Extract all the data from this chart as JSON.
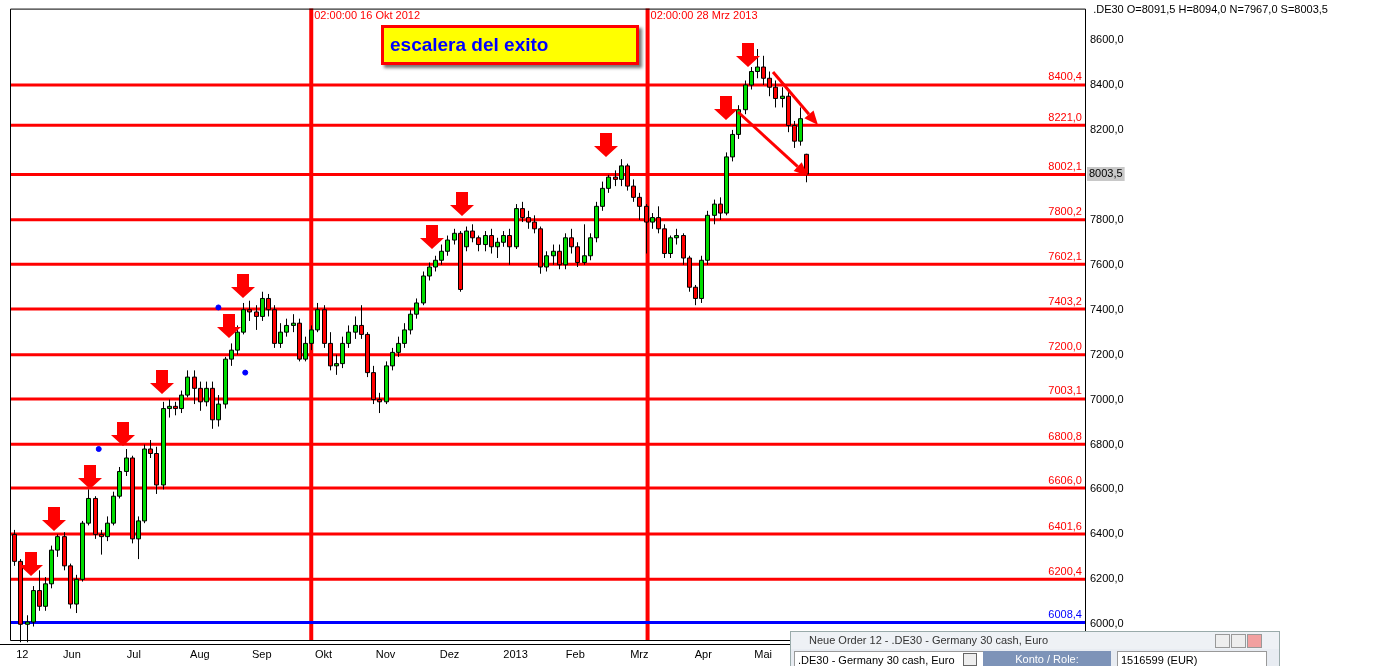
{
  "chart_data": {
    "type": "candlestick",
    "title": "escalera del exito",
    "subtitle": ".DE30 O=8091,5 H=8094,0 N=7967,0 S=8003,5",
    "x": [
      "2012-05-25",
      "2012-05-28",
      "2012-05-31",
      "2012-06-03",
      "2012-06-06",
      "2012-06-09",
      "2012-06-12",
      "2012-06-15",
      "2012-06-18",
      "2012-06-21",
      "2012-06-24",
      "2012-06-27",
      "2012-06-30",
      "2012-07-03",
      "2012-07-06",
      "2012-07-09",
      "2012-07-12",
      "2012-07-15",
      "2012-07-18",
      "2012-07-21",
      "2012-07-24",
      "2012-07-27",
      "2012-07-30",
      "2012-08-02",
      "2012-08-05",
      "2012-08-08",
      "2012-08-11",
      "2012-08-14",
      "2012-08-17",
      "2012-08-20",
      "2012-08-23",
      "2012-08-26",
      "2012-08-29",
      "2012-09-01",
      "2012-09-04",
      "2012-09-07",
      "2012-09-10",
      "2012-09-13",
      "2012-09-16",
      "2012-09-19",
      "2012-09-22",
      "2012-09-25",
      "2012-09-28",
      "2012-10-01",
      "2012-10-04",
      "2012-10-07",
      "2012-10-10",
      "2012-10-13",
      "2012-10-16",
      "2012-10-19",
      "2012-10-22",
      "2012-10-25",
      "2012-10-28",
      "2012-10-31",
      "2012-11-03",
      "2012-11-06",
      "2012-11-09",
      "2012-11-12",
      "2012-11-15",
      "2012-11-18",
      "2012-11-21",
      "2012-11-24",
      "2012-11-27",
      "2012-11-30",
      "2012-12-03",
      "2012-12-06",
      "2012-12-09",
      "2012-12-12",
      "2012-12-15",
      "2012-12-18",
      "2012-12-21",
      "2012-12-24",
      "2012-12-27",
      "2012-12-30",
      "2013-01-02",
      "2013-01-05",
      "2013-01-08",
      "2013-01-11",
      "2013-01-14",
      "2013-01-17",
      "2013-01-20",
      "2013-01-23",
      "2013-01-26",
      "2013-01-29",
      "2013-02-01",
      "2013-02-04",
      "2013-02-07",
      "2013-02-10",
      "2013-02-13",
      "2013-02-16",
      "2013-02-19",
      "2013-02-22",
      "2013-02-25",
      "2013-02-28",
      "2013-03-03",
      "2013-03-06",
      "2013-03-09",
      "2013-03-12",
      "2013-03-15",
      "2013-03-18",
      "2013-03-21",
      "2013-03-24",
      "2013-03-27",
      "2013-03-30",
      "2013-04-02",
      "2013-04-05",
      "2013-04-08",
      "2013-04-11",
      "2013-04-14",
      "2013-04-17",
      "2013-04-20",
      "2013-04-23",
      "2013-04-26",
      "2013-04-29",
      "2013-05-02",
      "2013-05-05",
      "2013-05-08",
      "2013-05-11",
      "2013-05-14",
      "2013-05-17",
      "2013-05-20",
      "2013-05-23",
      "2013-05-26",
      "2013-05-29",
      "2013-06-01",
      "2013-06-04",
      "2013-06-07",
      "2013-06-10",
      "2013-06-13"
    ],
    "ohlc": [
      [
        6400,
        6420,
        6260,
        6280
      ],
      [
        6280,
        6290,
        5920,
        6000
      ],
      [
        6000,
        6040,
        5920,
        6010
      ],
      [
        6010,
        6170,
        5990,
        6150
      ],
      [
        6150,
        6240,
        6060,
        6080
      ],
      [
        6080,
        6210,
        6060,
        6180
      ],
      [
        6180,
        6350,
        6160,
        6330
      ],
      [
        6330,
        6400,
        6300,
        6390
      ],
      [
        6390,
        6410,
        6240,
        6260
      ],
      [
        6260,
        6270,
        6070,
        6090
      ],
      [
        6090,
        6220,
        6050,
        6200
      ],
      [
        6200,
        6460,
        6190,
        6450
      ],
      [
        6450,
        6600,
        6440,
        6560
      ],
      [
        6560,
        6570,
        6380,
        6400
      ],
      [
        6400,
        6420,
        6310,
        6390
      ],
      [
        6390,
        6480,
        6370,
        6450
      ],
      [
        6450,
        6590,
        6440,
        6570
      ],
      [
        6570,
        6700,
        6560,
        6680
      ],
      [
        6680,
        6780,
        6660,
        6740
      ],
      [
        6740,
        6750,
        6360,
        6380
      ],
      [
        6380,
        6480,
        6290,
        6460
      ],
      [
        6460,
        6800,
        6450,
        6780
      ],
      [
        6780,
        6820,
        6740,
        6760
      ],
      [
        6760,
        6790,
        6580,
        6620
      ],
      [
        6620,
        6990,
        6600,
        6960
      ],
      [
        6960,
        7000,
        6920,
        6970
      ],
      [
        6970,
        6990,
        6930,
        6960
      ],
      [
        6960,
        7040,
        6940,
        7020
      ],
      [
        7020,
        7130,
        7010,
        7100
      ],
      [
        7100,
        7130,
        6980,
        7050
      ],
      [
        7050,
        7080,
        6950,
        6990
      ],
      [
        6990,
        7080,
        6970,
        7050
      ],
      [
        7050,
        7080,
        6870,
        6910
      ],
      [
        6910,
        7020,
        6880,
        6980
      ],
      [
        6980,
        7190,
        6960,
        7180
      ],
      [
        7180,
        7250,
        7150,
        7220
      ],
      [
        7220,
        7330,
        7200,
        7300
      ],
      [
        7300,
        7430,
        7290,
        7400
      ],
      [
        7400,
        7440,
        7350,
        7390
      ],
      [
        7390,
        7420,
        7310,
        7370
      ],
      [
        7370,
        7480,
        7350,
        7450
      ],
      [
        7450,
        7470,
        7370,
        7400
      ],
      [
        7400,
        7420,
        7230,
        7250
      ],
      [
        7250,
        7340,
        7230,
        7300
      ],
      [
        7300,
        7360,
        7280,
        7330
      ],
      [
        7330,
        7380,
        7300,
        7340
      ],
      [
        7340,
        7360,
        7170,
        7180
      ],
      [
        7180,
        7280,
        7170,
        7250
      ],
      [
        7250,
        7330,
        7220,
        7310
      ],
      [
        7310,
        7430,
        7300,
        7400
      ],
      [
        7400,
        7420,
        7230,
        7250
      ],
      [
        7250,
        7300,
        7130,
        7150
      ],
      [
        7150,
        7200,
        7110,
        7160
      ],
      [
        7160,
        7280,
        7140,
        7250
      ],
      [
        7250,
        7330,
        7230,
        7300
      ],
      [
        7300,
        7370,
        7270,
        7330
      ],
      [
        7330,
        7420,
        7270,
        7290
      ],
      [
        7290,
        7300,
        7100,
        7120
      ],
      [
        7120,
        7150,
        6980,
        7000
      ],
      [
        7000,
        7030,
        6940,
        6990
      ],
      [
        6990,
        7170,
        6980,
        7150
      ],
      [
        7150,
        7230,
        7130,
        7210
      ],
      [
        7210,
        7280,
        7190,
        7250
      ],
      [
        7250,
        7340,
        7230,
        7310
      ],
      [
        7310,
        7400,
        7290,
        7380
      ],
      [
        7380,
        7450,
        7360,
        7430
      ],
      [
        7430,
        7570,
        7420,
        7550
      ],
      [
        7550,
        7610,
        7530,
        7590
      ],
      [
        7590,
        7640,
        7570,
        7620
      ],
      [
        7620,
        7690,
        7600,
        7660
      ],
      [
        7660,
        7730,
        7640,
        7710
      ],
      [
        7710,
        7760,
        7690,
        7740
      ],
      [
        7740,
        7750,
        7480,
        7490
      ],
      [
        7680,
        7770,
        7660,
        7750
      ],
      [
        7750,
        7780,
        7700,
        7720
      ],
      [
        7720,
        7730,
        7660,
        7690
      ],
      [
        7690,
        7750,
        7660,
        7730
      ],
      [
        7730,
        7760,
        7650,
        7680
      ],
      [
        7680,
        7720,
        7630,
        7700
      ],
      [
        7700,
        7750,
        7680,
        7730
      ],
      [
        7730,
        7760,
        7600,
        7680
      ],
      [
        7680,
        7870,
        7670,
        7850
      ],
      [
        7850,
        7880,
        7790,
        7810
      ],
      [
        7810,
        7840,
        7760,
        7790
      ],
      [
        7790,
        7820,
        7740,
        7760
      ],
      [
        7760,
        7770,
        7560,
        7590
      ],
      [
        7590,
        7660,
        7570,
        7640
      ],
      [
        7640,
        7690,
        7600,
        7660
      ],
      [
        7660,
        7690,
        7580,
        7600
      ],
      [
        7600,
        7740,
        7580,
        7720
      ],
      [
        7720,
        7760,
        7650,
        7680
      ],
      [
        7680,
        7700,
        7590,
        7610
      ],
      [
        7610,
        7780,
        7600,
        7640
      ],
      [
        7640,
        7740,
        7620,
        7720
      ],
      [
        7720,
        7880,
        7700,
        7860
      ],
      [
        7860,
        7970,
        7840,
        7940
      ],
      [
        7940,
        8000,
        7920,
        7990
      ],
      [
        7990,
        8020,
        7950,
        7980
      ],
      [
        7980,
        8070,
        7950,
        8040
      ],
      [
        8040,
        8050,
        7930,
        7950
      ],
      [
        7950,
        7980,
        7880,
        7900
      ],
      [
        7900,
        7920,
        7800,
        7860
      ],
      [
        7860,
        7870,
        7650,
        7790
      ],
      [
        7790,
        7830,
        7760,
        7810
      ],
      [
        7810,
        7860,
        7740,
        7760
      ],
      [
        7760,
        7780,
        7630,
        7650
      ],
      [
        7650,
        7730,
        7630,
        7720
      ],
      [
        7720,
        7760,
        7690,
        7730
      ],
      [
        7730,
        7740,
        7600,
        7630
      ],
      [
        7630,
        7640,
        7480,
        7500
      ],
      [
        7500,
        7510,
        7420,
        7450
      ],
      [
        7450,
        7640,
        7430,
        7620
      ],
      [
        7620,
        7840,
        7600,
        7820
      ],
      [
        7820,
        7890,
        7780,
        7870
      ],
      [
        7870,
        7900,
        7800,
        7830
      ],
      [
        7830,
        8100,
        7820,
        8080
      ],
      [
        8080,
        8200,
        8060,
        8180
      ],
      [
        8180,
        8310,
        8160,
        8290
      ],
      [
        8290,
        8420,
        8270,
        8400
      ],
      [
        8400,
        8480,
        8380,
        8460
      ],
      [
        8460,
        8560,
        8430,
        8480
      ],
      [
        8480,
        8530,
        8400,
        8430
      ],
      [
        8430,
        8460,
        8350,
        8390
      ],
      [
        8390,
        8420,
        8300,
        8340
      ],
      [
        8340,
        8390,
        8300,
        8350
      ],
      [
        8350,
        8370,
        8190,
        8220
      ],
      [
        8220,
        8240,
        8120,
        8150
      ],
      [
        8150,
        8300,
        8130,
        8250
      ],
      [
        8091.5,
        8094,
        7967,
        8003.5
      ]
    ],
    "series": [
      {
        "type": "scatter",
        "color": "#0000ff",
        "x": [
          "2012-07-05",
          "2012-09-01",
          "2012-09-14"
        ],
        "values": [
          6780,
          7410,
          7120
        ]
      }
    ],
    "marker": "circle",
    "xlim": [
      "2012-05-23",
      "2013-10-26"
    ],
    "xticks": [
      {
        "value": "2012-05-29",
        "label": "12"
      },
      {
        "value": "2012-06-22",
        "label": "Jun"
      },
      {
        "value": "2012-07-22",
        "label": "Jul"
      },
      {
        "value": "2012-08-23",
        "label": "Aug"
      },
      {
        "value": "2012-09-22",
        "label": "Sep"
      },
      {
        "value": "2012-10-22",
        "label": "Okt"
      },
      {
        "value": "2012-11-21",
        "label": "Nov"
      },
      {
        "value": "2012-12-22",
        "label": "Dez"
      },
      {
        "value": "2013-01-23",
        "label": "2013"
      },
      {
        "value": "2013-02-21",
        "label": "Feb"
      },
      {
        "value": "2013-03-24",
        "label": "Mrz"
      },
      {
        "value": "2013-04-24",
        "label": "Apr"
      },
      {
        "value": "2013-05-23",
        "label": "Mai"
      }
    ],
    "ylim": [
      5930,
      8740
    ],
    "yticks": [
      {
        "value": 6000,
        "label": "6000,0"
      },
      {
        "value": 6200,
        "label": "6200,0"
      },
      {
        "value": 6400,
        "label": "6400,0"
      },
      {
        "value": 6600,
        "label": "6600,0"
      },
      {
        "value": 6800,
        "label": "6800,0"
      },
      {
        "value": 7000,
        "label": "7000,0"
      },
      {
        "value": 7200,
        "label": "7200,0"
      },
      {
        "value": 7400,
        "label": "7400,0"
      },
      {
        "value": 7600,
        "label": "7600,0"
      },
      {
        "value": 7800,
        "label": "7800,0"
      },
      {
        "value": 8000,
        "label": null
      },
      {
        "value": 8200,
        "label": "8200,0"
      },
      {
        "value": 8400,
        "label": "8400,0"
      },
      {
        "value": 8600,
        "label": "8600,0"
      }
    ],
    "ref_lines": [
      {
        "axis": "x",
        "value": "2012-10-16",
        "label": "02:00:00 16 Okt 2012",
        "color": "#ff0000"
      },
      {
        "axis": "x",
        "value": "2013-03-28",
        "label": "02:00:00 28 Mrz 2013",
        "color": "#ff0000"
      },
      {
        "axis": "y",
        "value": 8400.4,
        "label": "8400,4",
        "color": "#ff0000"
      },
      {
        "axis": "y",
        "value": 8221.0,
        "label": "8221,0",
        "color": "#ff0000"
      },
      {
        "axis": "y",
        "value": 8002.1,
        "label": "8002,1",
        "color": "#ff0000"
      },
      {
        "axis": "y",
        "value": 7800.2,
        "label": "7800,2",
        "color": "#ff0000"
      },
      {
        "axis": "y",
        "value": 7602.1,
        "label": "7602,1",
        "color": "#ff0000"
      },
      {
        "axis": "y",
        "value": 7403.2,
        "label": "7403,2",
        "color": "#ff0000"
      },
      {
        "axis": "y",
        "value": 7200.0,
        "label": "7200,0",
        "color": "#ff0000"
      },
      {
        "axis": "y",
        "value": 7003.1,
        "label": "7003,1",
        "color": "#ff0000"
      },
      {
        "axis": "y",
        "value": 6800.8,
        "label": "6800,8",
        "color": "#ff0000"
      },
      {
        "axis": "y",
        "value": 6606.0,
        "label": "6606,0",
        "color": "#ff0000"
      },
      {
        "axis": "y",
        "value": 6401.6,
        "label": "6401,6",
        "color": "#ff0000"
      },
      {
        "axis": "y",
        "value": 6200.4,
        "label": "6200,4",
        "color": "#ff0000"
      },
      {
        "axis": "y",
        "value": 6008.4,
        "label": "6008,4",
        "color": "#0000ff"
      }
    ],
    "annotations": [
      {
        "text": "8003,5",
        "y": 8003.5
      },
      "Neue Order 12 - .DE30 - Germany 30 cash, Euro",
      ".DE30 - Germany 30 cash, Euro",
      "Konto / Role:",
      "1516599 (EUR)"
    ],
    "grid": false,
    "legend": false
  }
}
